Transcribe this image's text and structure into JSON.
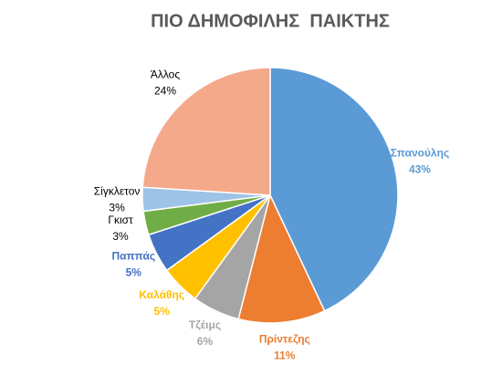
{
  "chart_data": {
    "type": "pie",
    "title": "ΠΙΟ ΔΗΜΟΦΙΛΗΣ  ΠΑΙΚΤΗΣ",
    "categories": [
      "Σπανούλης",
      "Πρίντεζης",
      "Τζέιμς",
      "Καλάθης",
      "Παππάς",
      "Γκιστ",
      "Σίγκλετον",
      "Άλλος"
    ],
    "values": [
      43,
      11,
      6,
      5,
      5,
      3,
      3,
      24
    ],
    "value_labels": [
      "43%",
      "11%",
      "6%",
      "5%",
      "5%",
      "3%",
      "3%",
      "24%"
    ],
    "colors": [
      "#5b9bd5",
      "#ed7d31",
      "#a5a5a5",
      "#ffc000",
      "#4472c4",
      "#70ad47",
      "#9dc3e6",
      "#f4a98a"
    ],
    "label_colors": [
      "#5b9bd5",
      "#ed7d31",
      "#a5a5a5",
      "#ffc000",
      "#4472c4",
      "#000000",
      "#000000",
      "#000000"
    ]
  }
}
